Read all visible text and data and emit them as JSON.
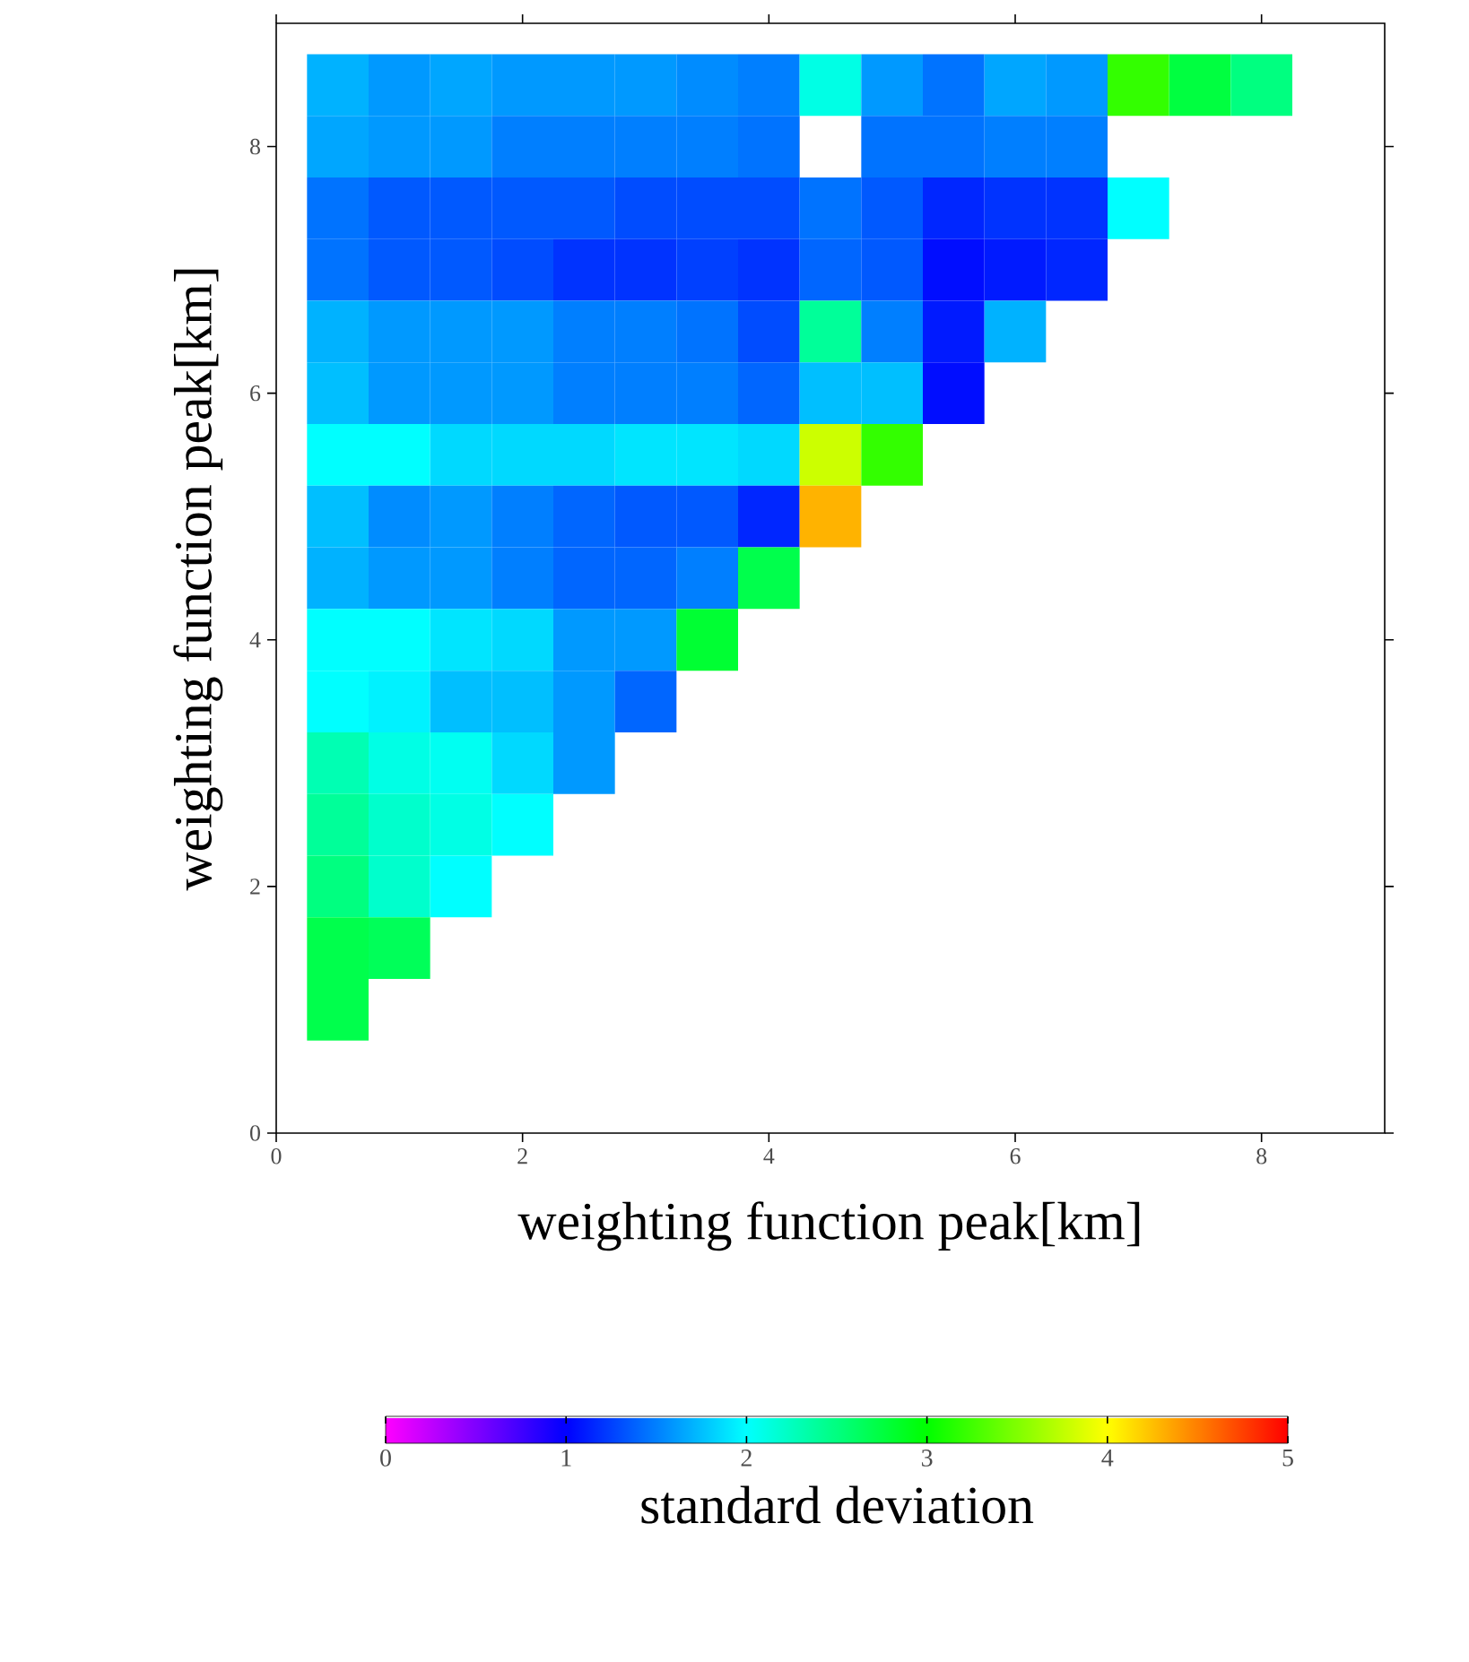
{
  "chart_data": {
    "type": "heatmap",
    "xlabel": "weighting function peak[km]",
    "ylabel": "weighting function peak[km]",
    "clabel": "standard deviation",
    "x": [
      0.5,
      1.0,
      1.5,
      2.0,
      2.5,
      3.0,
      3.5,
      4.0,
      4.5,
      5.0,
      5.5,
      6.0,
      6.5,
      7.0,
      7.5,
      8.0
    ],
    "y": [
      8.5,
      8.0,
      7.5,
      7.0,
      6.5,
      6.0,
      5.5,
      5.0,
      4.5,
      4.0,
      3.5,
      3.0,
      2.5,
      2.0,
      1.5,
      1.0
    ],
    "cells": [
      [
        1.7,
        1.6,
        1.65,
        1.6,
        1.6,
        1.6,
        1.55,
        1.5,
        2.1,
        1.6,
        1.45,
        1.65,
        1.6,
        3.2,
        2.75,
        2.5
      ],
      [
        1.65,
        1.6,
        1.6,
        1.5,
        1.5,
        1.5,
        1.5,
        1.45,
        null,
        1.45,
        1.45,
        1.5,
        1.5,
        null,
        null,
        null
      ],
      [
        1.45,
        1.35,
        1.35,
        1.35,
        1.35,
        1.3,
        1.3,
        1.3,
        1.45,
        1.35,
        1.15,
        1.2,
        1.2,
        2.0,
        null,
        null
      ],
      [
        1.45,
        1.35,
        1.35,
        1.3,
        1.2,
        1.2,
        1.25,
        1.2,
        1.4,
        1.35,
        1.05,
        1.1,
        1.15,
        null,
        null,
        null
      ],
      [
        1.7,
        1.6,
        1.6,
        1.6,
        1.5,
        1.5,
        1.45,
        1.3,
        2.4,
        1.5,
        1.1,
        1.7,
        null,
        null,
        null,
        null
      ],
      [
        1.75,
        1.6,
        1.6,
        1.6,
        1.5,
        1.5,
        1.5,
        1.4,
        1.75,
        1.75,
        1.05,
        null,
        null,
        null,
        null,
        null
      ],
      [
        2.0,
        2.0,
        1.85,
        1.85,
        1.85,
        1.9,
        1.9,
        1.85,
        3.8,
        3.2,
        null,
        null,
        null,
        null,
        null,
        null
      ],
      [
        1.75,
        1.55,
        1.6,
        1.5,
        1.4,
        1.35,
        1.35,
        1.15,
        4.3,
        null,
        null,
        null,
        null,
        null,
        null,
        null
      ],
      [
        1.7,
        1.6,
        1.6,
        1.5,
        1.4,
        1.4,
        1.5,
        2.7,
        null,
        null,
        null,
        null,
        null,
        null,
        null,
        null
      ],
      [
        2.0,
        2.0,
        1.9,
        1.85,
        1.6,
        1.6,
        2.8,
        null,
        null,
        null,
        null,
        null,
        null,
        null,
        null,
        null
      ],
      [
        2.0,
        1.95,
        1.75,
        1.75,
        1.6,
        1.4,
        null,
        null,
        null,
        null,
        null,
        null,
        null,
        null,
        null,
        null
      ],
      [
        2.3,
        2.1,
        2.05,
        1.85,
        1.6,
        null,
        null,
        null,
        null,
        null,
        null,
        null,
        null,
        null,
        null,
        null
      ],
      [
        2.4,
        2.2,
        2.1,
        2.0,
        null,
        null,
        null,
        null,
        null,
        null,
        null,
        null,
        null,
        null,
        null,
        null
      ],
      [
        2.5,
        2.2,
        2.0,
        null,
        null,
        null,
        null,
        null,
        null,
        null,
        null,
        null,
        null,
        null,
        null,
        null
      ],
      [
        2.7,
        2.65,
        null,
        null,
        null,
        null,
        null,
        null,
        null,
        null,
        null,
        null,
        null,
        null,
        null,
        null
      ],
      [
        2.7,
        null,
        null,
        null,
        null,
        null,
        null,
        null,
        null,
        null,
        null,
        null,
        null,
        null,
        null,
        null
      ]
    ],
    "clim": [
      0,
      5
    ],
    "cticks": [
      0,
      1,
      2,
      3,
      4,
      5
    ],
    "xlim": [
      0,
      9
    ],
    "ylim": [
      0,
      9
    ],
    "xticks": [
      0,
      2,
      4,
      6,
      8
    ],
    "yticks": [
      0,
      2,
      4,
      6,
      8
    ]
  }
}
